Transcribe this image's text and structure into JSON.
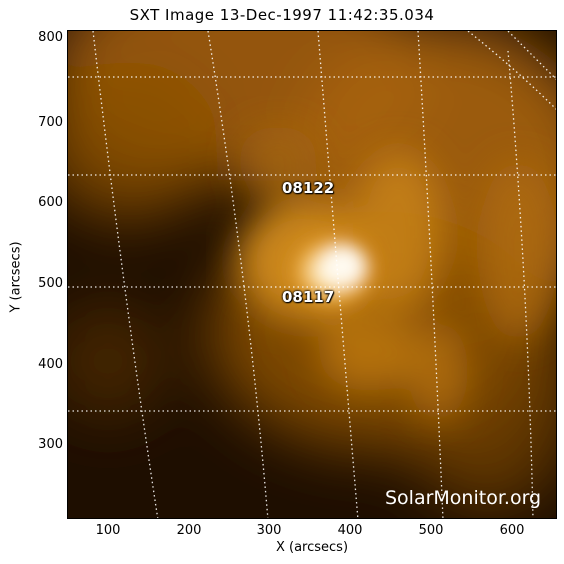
{
  "title": "SXT Image 13-Dec-1997 11:42:35.034",
  "x_axis": {
    "label": "X (arcsecs)",
    "ticks": [
      "100",
      "200",
      "300",
      "400",
      "500",
      "600"
    ]
  },
  "y_axis": {
    "label": "Y (arcsecs)",
    "ticks": [
      "800",
      "700",
      "600",
      "500",
      "400",
      "300"
    ]
  },
  "active_regions": [
    {
      "id": "08122"
    },
    {
      "id": "08117"
    }
  ],
  "credit": "SolarMonitor.org",
  "colors": {
    "background_dark": "#1e0e00",
    "corona_orange": "#c8780a",
    "bright_core": "#fff6dc",
    "grid_lines": "#ffffff"
  }
}
